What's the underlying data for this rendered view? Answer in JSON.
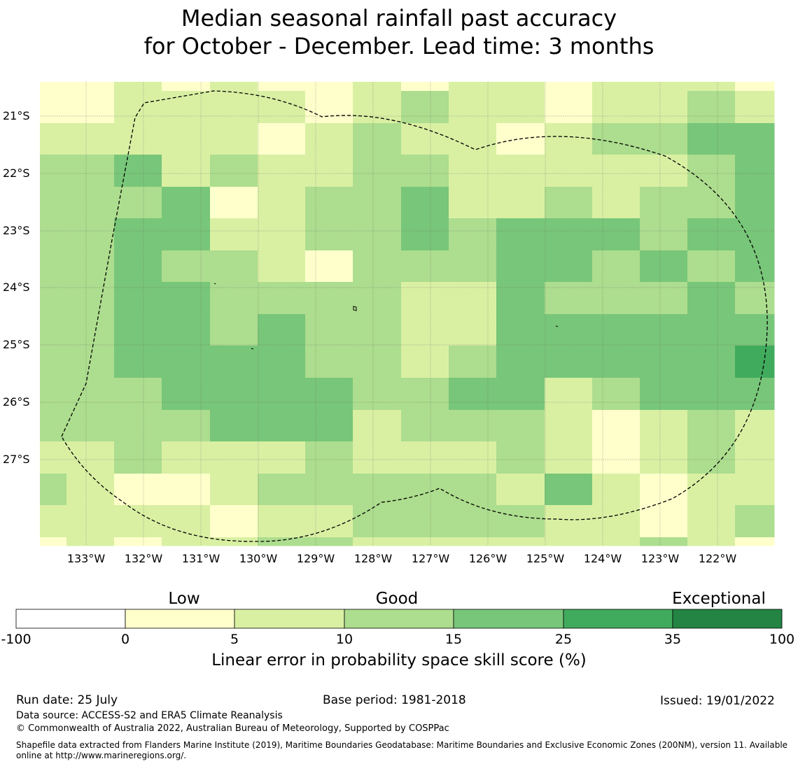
{
  "title": {
    "line1": "Median seasonal rainfall past accuracy",
    "line2": "for October - December. Lead time: 3 months"
  },
  "map": {
    "lat_labels": [
      "21°S",
      "22°S",
      "23°S",
      "24°S",
      "25°S",
      "26°S",
      "27°S"
    ],
    "lon_labels": [
      "133°W",
      "132°W",
      "131°W",
      "130°W",
      "129°W",
      "128°W",
      "127°W",
      "126°W",
      "125°W",
      "124°W",
      "123°W",
      "122°W"
    ],
    "category_colors": [
      "#ffffff",
      "#ffffcc",
      "#d9f0a3",
      "#addd8e",
      "#78c679",
      "#41ab5d",
      "#238443"
    ],
    "boundary_style": "dashed black outline (exclusive economic zone)",
    "grid": true
  },
  "colorbar": {
    "category_words": [
      "Low",
      "Good",
      "Exceptional"
    ],
    "ticks": [
      "-100",
      "0",
      "5",
      "10",
      "15",
      "25",
      "35",
      "100"
    ],
    "colors": [
      "#ffffff",
      "#ffffcc",
      "#d9f0a3",
      "#addd8e",
      "#78c679",
      "#41ab5d",
      "#238443"
    ],
    "label": "Linear error in probability space skill score (%)"
  },
  "footer": {
    "run_date": "Run date: 25 July",
    "base_period": "Base period: 1981-2018",
    "issued": "Issued: 19/01/2022",
    "data_source": "Data source: ACCESS-S2 and ERA5 Climate Reanalysis",
    "copyright": "© Commonwealth of Australia 2022, Australian Bureau of Meteorology, Supported by COSPPac",
    "shapefile_line1": "Shapefile data extracted from Flanders Marine Institute (2019), Maritime Boundaries Geodatabase: Maritime Boundaries and Exclusive Economic Zones (200NM), version 11. Available",
    "shapefile_line2": "online at http://www.marineregions.org/."
  }
}
